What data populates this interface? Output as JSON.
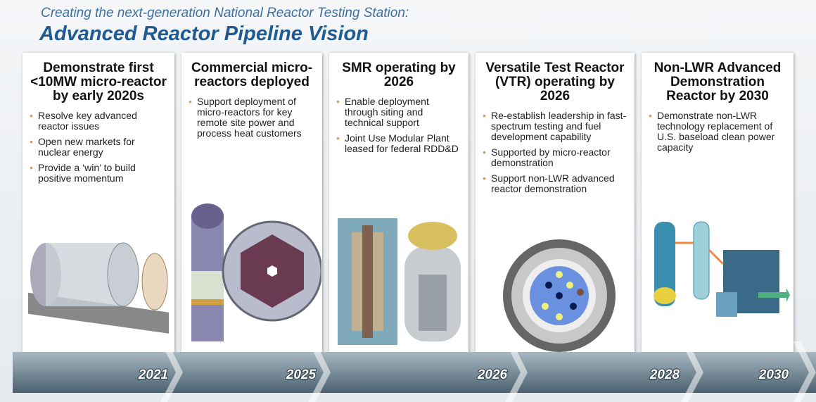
{
  "header": {
    "subtitle": "Creating the next-generation National Reactor Testing Station:",
    "title": "Advanced Reactor Pipeline Vision"
  },
  "panels": [
    {
      "title": "Demonstrate first <10MW micro-reactor by early 2020s",
      "bullets": [
        "Resolve key advanced reactor issues",
        "Open new markets for nuclear energy",
        "Provide a ‘win’ to build positive momentum"
      ]
    },
    {
      "title": "Commercial micro-reactors deployed",
      "bullets": [
        "Support deployment of micro-reactors for key remote site power and process heat customers"
      ]
    },
    {
      "title": "SMR operating by 2026",
      "bullets": [
        "Enable deployment through siting and technical support",
        "Joint Use Modular Plant leased for federal RDD&D"
      ]
    },
    {
      "title": "Versatile Test Reactor (VTR) operating by 2026",
      "bullets": [
        "Re-establish leadership in fast-spectrum testing and fuel development capability",
        "Supported by micro-reactor demonstration",
        "Support non-LWR advanced reactor demonstration"
      ]
    },
    {
      "title": "Non-LWR Advanced Demonstration Reactor by 2030",
      "bullets": [
        "Demonstrate non-LWR technology replacement of U.S. baseload clean power capacity"
      ]
    }
  ],
  "timeline": [
    "2021",
    "2025",
    "2026",
    "2028",
    "2030"
  ]
}
